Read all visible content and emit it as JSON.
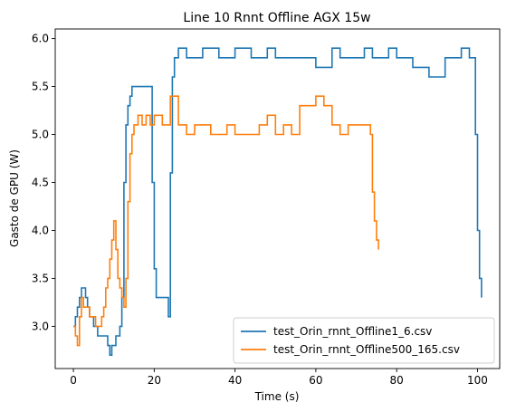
{
  "chart_data": {
    "type": "line",
    "title": "Line 10 Rnnt Offline AGX 15w",
    "xlabel": "Time (s)",
    "ylabel": "Gasto de GPU (W)",
    "xlim": [
      -4.5,
      105.5
    ],
    "ylim": [
      2.56,
      6.1
    ],
    "xticks": [
      0,
      20,
      40,
      60,
      80,
      100
    ],
    "yticks": [
      3.0,
      3.5,
      4.0,
      4.5,
      5.0,
      5.5,
      6.0
    ],
    "xtick_labels": [
      "0",
      "20",
      "40",
      "60",
      "80",
      "100"
    ],
    "ytick_labels": [
      "3.0",
      "3.5",
      "4.0",
      "4.5",
      "5.0",
      "5.5",
      "6.0"
    ],
    "grid": false,
    "legend_position": "lower-right",
    "series": [
      {
        "name": "test_Orin_rnnt_Offline1_6.csv",
        "color": "#1f77b4",
        "x": [
          0,
          0.5,
          1,
          1.5,
          2,
          2.5,
          3,
          3.5,
          4,
          4.5,
          5,
          5.5,
          6,
          6.5,
          7,
          7.5,
          8,
          8.5,
          9,
          9.5,
          10,
          10.5,
          11,
          11.5,
          12,
          12.5,
          13,
          13.5,
          14,
          14.5,
          15,
          16,
          17,
          18,
          19,
          19.5,
          20,
          20.5,
          21,
          22,
          23,
          23.5,
          24,
          24.5,
          25,
          26,
          28,
          30,
          32,
          34,
          36,
          38,
          40,
          42,
          44,
          46,
          48,
          50,
          52,
          54,
          56,
          58,
          60,
          62,
          64,
          66,
          68,
          70,
          72,
          74,
          76,
          78,
          80,
          82,
          84,
          86,
          88,
          90,
          92,
          94,
          96,
          98,
          99,
          99.5,
          100,
          100.5,
          101
        ],
        "values": [
          3.0,
          3.1,
          3.2,
          3.3,
          3.4,
          3.4,
          3.3,
          3.2,
          3.1,
          3.1,
          3.0,
          3.0,
          2.9,
          2.9,
          2.9,
          2.9,
          2.9,
          2.8,
          2.7,
          2.8,
          2.8,
          2.9,
          2.9,
          3.0,
          3.3,
          4.5,
          5.1,
          5.3,
          5.4,
          5.5,
          5.5,
          5.5,
          5.5,
          5.5,
          5.5,
          4.5,
          3.6,
          3.3,
          3.3,
          3.3,
          3.3,
          3.1,
          4.6,
          5.6,
          5.8,
          5.9,
          5.8,
          5.8,
          5.9,
          5.9,
          5.8,
          5.8,
          5.9,
          5.9,
          5.8,
          5.8,
          5.9,
          5.8,
          5.8,
          5.8,
          5.8,
          5.8,
          5.7,
          5.7,
          5.9,
          5.8,
          5.8,
          5.8,
          5.9,
          5.8,
          5.8,
          5.9,
          5.8,
          5.8,
          5.7,
          5.7,
          5.6,
          5.6,
          5.8,
          5.8,
          5.9,
          5.8,
          5.8,
          5.0,
          4.0,
          3.5,
          3.3
        ]
      },
      {
        "name": "test_Orin_rnnt_Offline500_165.csv",
        "color": "#ff7f0e",
        "x": [
          0,
          0.5,
          1,
          1.5,
          2,
          2.5,
          3,
          3.5,
          4,
          4.5,
          5,
          5.5,
          6,
          6.5,
          7,
          7.5,
          8,
          8.5,
          9,
          9.5,
          10,
          10.5,
          11,
          11.5,
          12,
          12.5,
          13,
          13.5,
          14,
          14.5,
          15,
          16,
          17,
          18,
          19,
          20,
          21,
          22,
          24,
          26,
          28,
          30,
          32,
          34,
          36,
          38,
          40,
          42,
          44,
          46,
          48,
          50,
          52,
          54,
          56,
          58,
          60,
          62,
          64,
          66,
          68,
          70,
          72,
          73,
          73.5,
          74,
          74.5,
          75,
          75.5
        ],
        "values": [
          3.0,
          2.9,
          2.8,
          3.1,
          3.3,
          3.2,
          3.2,
          3.2,
          3.1,
          3.1,
          3.1,
          3.0,
          3.0,
          3.0,
          3.1,
          3.2,
          3.4,
          3.5,
          3.7,
          3.9,
          4.1,
          3.8,
          3.5,
          3.4,
          3.3,
          3.2,
          3.5,
          4.3,
          4.8,
          5.0,
          5.1,
          5.2,
          5.1,
          5.2,
          5.1,
          5.2,
          5.2,
          5.1,
          5.4,
          5.1,
          5.0,
          5.1,
          5.1,
          5.0,
          5.0,
          5.1,
          5.0,
          5.0,
          5.0,
          5.1,
          5.2,
          5.0,
          5.1,
          5.0,
          5.3,
          5.3,
          5.4,
          5.3,
          5.1,
          5.0,
          5.1,
          5.1,
          5.1,
          5.1,
          5.0,
          4.4,
          4.1,
          3.9,
          3.8
        ]
      }
    ]
  }
}
